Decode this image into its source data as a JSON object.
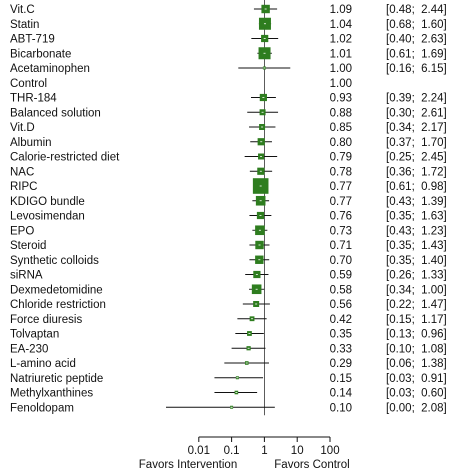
{
  "chart_data": {
    "type": "forest",
    "x_scale": "log",
    "xlim": [
      0.001,
      100
    ],
    "x_ticks": [
      {
        "value": 0.01,
        "label": "0.01"
      },
      {
        "value": 0.1,
        "label": "0.1"
      },
      {
        "value": 1,
        "label": "1"
      },
      {
        "value": 10,
        "label": "10"
      },
      {
        "value": 100,
        "label": "100"
      }
    ],
    "reference_line": 1,
    "left_favor_label": "Favors Intervention",
    "right_favor_label": "Favors Control",
    "marker_color": "#2e7d1f",
    "rows": [
      {
        "name": "Vit.C",
        "estimate": 1.09,
        "est_text": "1.09",
        "ci_low": 0.48,
        "ci_high": 2.44,
        "ci_text": "[0.48;  2.44]",
        "weight": 0.7
      },
      {
        "name": "Statin",
        "estimate": 1.04,
        "est_text": "1.04",
        "ci_low": 0.68,
        "ci_high": 1.6,
        "ci_text": "[0.68;  1.60]",
        "weight": 1.0
      },
      {
        "name": "ABT-719",
        "estimate": 1.02,
        "est_text": "1.02",
        "ci_low": 0.4,
        "ci_high": 2.63,
        "ci_text": "[0.40;  2.63]",
        "weight": 0.6
      },
      {
        "name": "Bicarbonate",
        "estimate": 1.01,
        "est_text": "1.01",
        "ci_low": 0.61,
        "ci_high": 1.69,
        "ci_text": "[0.61;  1.69]",
        "weight": 1.0
      },
      {
        "name": "Acetaminophen",
        "estimate": 1.0,
        "est_text": "1.00",
        "ci_low": 0.16,
        "ci_high": 6.15,
        "ci_text": "[0.16;  6.15]",
        "weight": 0.2
      },
      {
        "name": "Control",
        "estimate": 1.0,
        "est_text": "1.00",
        "ci_low": null,
        "ci_high": null,
        "ci_text": "",
        "weight": 0
      },
      {
        "name": "THR-184",
        "estimate": 0.93,
        "est_text": "0.93",
        "ci_low": 0.39,
        "ci_high": 2.24,
        "ci_text": "[0.39;  2.24]",
        "weight": 0.6
      },
      {
        "name": "Balanced solution",
        "estimate": 0.88,
        "est_text": "0.88",
        "ci_low": 0.3,
        "ci_high": 2.61,
        "ci_text": "[0.30;  2.61]",
        "weight": 0.5
      },
      {
        "name": "Vit.D",
        "estimate": 0.85,
        "est_text": "0.85",
        "ci_low": 0.34,
        "ci_high": 2.17,
        "ci_text": "[0.34;  2.17]",
        "weight": 0.5
      },
      {
        "name": "Albumin",
        "estimate": 0.8,
        "est_text": "0.80",
        "ci_low": 0.37,
        "ci_high": 1.7,
        "ci_text": "[0.37;  1.70]",
        "weight": 0.6
      },
      {
        "name": "Calorie-restricted diet",
        "estimate": 0.79,
        "est_text": "0.79",
        "ci_low": 0.25,
        "ci_high": 2.45,
        "ci_text": "[0.25;  2.45]",
        "weight": 0.5
      },
      {
        "name": "NAC",
        "estimate": 0.78,
        "est_text": "0.78",
        "ci_low": 0.36,
        "ci_high": 1.72,
        "ci_text": "[0.36;  1.72]",
        "weight": 0.6
      },
      {
        "name": "RIPC",
        "estimate": 0.77,
        "est_text": "0.77",
        "ci_low": 0.61,
        "ci_high": 0.98,
        "ci_text": "[0.61;  0.98]",
        "weight": 1.3
      },
      {
        "name": "KDIGO bundle",
        "estimate": 0.77,
        "est_text": "0.77",
        "ci_low": 0.43,
        "ci_high": 1.39,
        "ci_text": "[0.43;  1.39]",
        "weight": 0.8
      },
      {
        "name": "Levosimendan",
        "estimate": 0.76,
        "est_text": "0.76",
        "ci_low": 0.35,
        "ci_high": 1.63,
        "ci_text": "[0.35;  1.63]",
        "weight": 0.6
      },
      {
        "name": "EPO",
        "estimate": 0.73,
        "est_text": "0.73",
        "ci_low": 0.43,
        "ci_high": 1.23,
        "ci_text": "[0.43;  1.23]",
        "weight": 0.8
      },
      {
        "name": "Steroid",
        "estimate": 0.71,
        "est_text": "0.71",
        "ci_low": 0.35,
        "ci_high": 1.43,
        "ci_text": "[0.35;  1.43]",
        "weight": 0.7
      },
      {
        "name": "Synthetic colloids",
        "estimate": 0.7,
        "est_text": "0.70",
        "ci_low": 0.35,
        "ci_high": 1.4,
        "ci_text": "[0.35;  1.40]",
        "weight": 0.7
      },
      {
        "name": "siRNA",
        "estimate": 0.59,
        "est_text": "0.59",
        "ci_low": 0.26,
        "ci_high": 1.33,
        "ci_text": "[0.26;  1.33]",
        "weight": 0.6
      },
      {
        "name": "Dexmedetomidine",
        "estimate": 0.58,
        "est_text": "0.58",
        "ci_low": 0.34,
        "ci_high": 1.0,
        "ci_text": "[0.34;  1.00]",
        "weight": 0.8
      },
      {
        "name": "Chloride restriction",
        "estimate": 0.56,
        "est_text": "0.56",
        "ci_low": 0.22,
        "ci_high": 1.47,
        "ci_text": "[0.22;  1.47]",
        "weight": 0.5
      },
      {
        "name": "Force diuresis",
        "estimate": 0.42,
        "est_text": "0.42",
        "ci_low": 0.15,
        "ci_high": 1.17,
        "ci_text": "[0.15;  1.17]",
        "weight": 0.4
      },
      {
        "name": "Tolvaptan",
        "estimate": 0.35,
        "est_text": "0.35",
        "ci_low": 0.13,
        "ci_high": 0.96,
        "ci_text": "[0.13;  0.96]",
        "weight": 0.4
      },
      {
        "name": "EA-230",
        "estimate": 0.33,
        "est_text": "0.33",
        "ci_low": 0.1,
        "ci_high": 1.08,
        "ci_text": "[0.10;  1.08]",
        "weight": 0.35
      },
      {
        "name": "L-amino acid",
        "estimate": 0.29,
        "est_text": "0.29",
        "ci_low": 0.06,
        "ci_high": 1.38,
        "ci_text": "[0.06;  1.38]",
        "weight": 0.3
      },
      {
        "name": "Natriuretic peptide",
        "estimate": 0.15,
        "est_text": "0.15",
        "ci_low": 0.03,
        "ci_high": 0.91,
        "ci_text": "[0.03;  0.91]",
        "weight": 0.25
      },
      {
        "name": "Methylxanthines",
        "estimate": 0.14,
        "est_text": "0.14",
        "ci_low": 0.03,
        "ci_high": 0.6,
        "ci_text": "[0.03;  0.60]",
        "weight": 0.3
      },
      {
        "name": "Fenoldopam",
        "estimate": 0.1,
        "est_text": "0.10",
        "ci_low": 0.0,
        "ci_high": 2.08,
        "ci_text": "[0.00;  2.08]",
        "weight": 0.15
      }
    ]
  }
}
